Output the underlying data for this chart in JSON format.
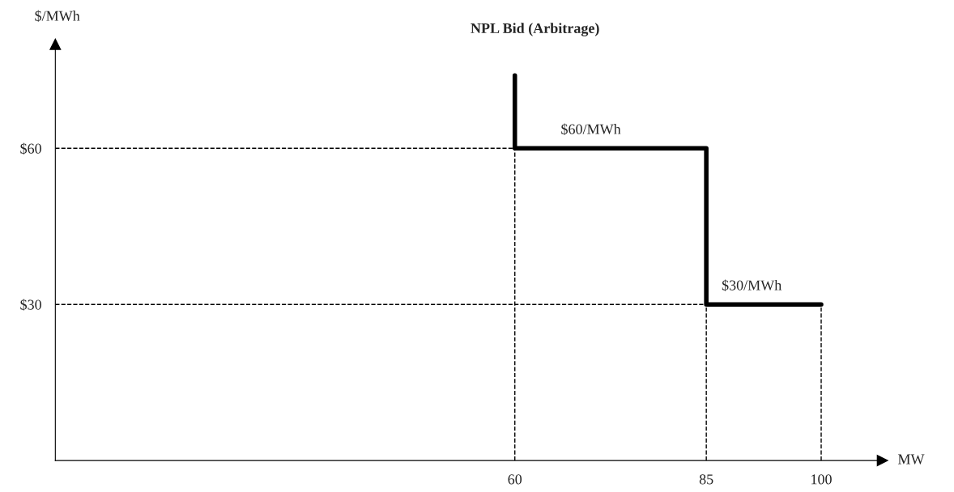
{
  "chart_data": {
    "type": "line",
    "title": "NPL Bid (Arbitrage)",
    "xlabel": "MW",
    "ylabel": "$/MWh",
    "series": [
      {
        "color": "#000000",
        "x": [
          60,
          60,
          85,
          85,
          100
        ],
        "values": [
          74,
          60,
          60,
          30,
          30
        ]
      }
    ],
    "xlim": [
      0,
      108
    ],
    "ylim": [
      0,
      80
    ],
    "xticks": [
      60,
      85,
      100
    ],
    "yticks": [
      {
        "value": 30,
        "label": "$30"
      },
      {
        "value": 60,
        "label": "$60"
      }
    ],
    "ref_lines": [
      {
        "axis": "y",
        "value": 60,
        "color": "#000000",
        "line_style": "dashed"
      },
      {
        "axis": "y",
        "value": 30,
        "color": "#000000",
        "line_style": "dashed"
      },
      {
        "axis": "x",
        "value": 60,
        "color": "#000000",
        "line_style": "dashed"
      },
      {
        "axis": "x",
        "value": 85,
        "color": "#000000",
        "line_style": "dashed"
      },
      {
        "axis": "x",
        "value": 100,
        "color": "#000000",
        "line_style": "dashed"
      }
    ],
    "annotations": [
      {
        "text": "$60/MWh",
        "x": 66,
        "y": 60
      },
      {
        "text": "$30/MWh",
        "x": 87,
        "y": 30
      }
    ],
    "grid": false,
    "marker": "none",
    "line_style": "solid"
  }
}
